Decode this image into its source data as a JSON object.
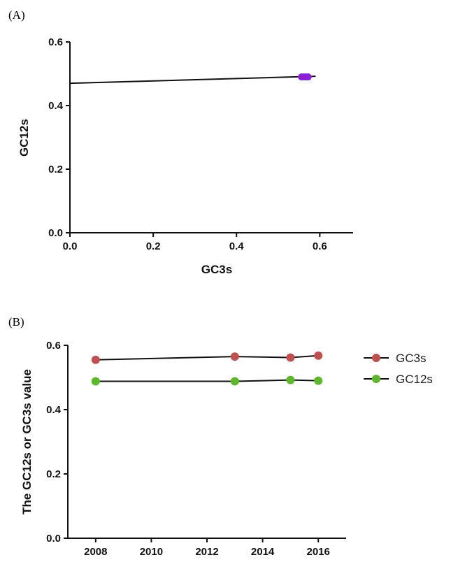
{
  "chart_data": [
    {
      "panel": "(A)",
      "type": "scatter",
      "xlabel": "GC3s",
      "ylabel": "GC12s",
      "xlim": [
        0,
        0.68
      ],
      "ylim": [
        0,
        0.6
      ],
      "xticks": [
        "0.0",
        "0.2",
        "0.4",
        "0.6"
      ],
      "yticks": [
        "0.0",
        "0.2",
        "0.4",
        "0.6"
      ],
      "points": [
        {
          "x": 0.556,
          "y": 0.49
        },
        {
          "x": 0.56,
          "y": 0.49
        },
        {
          "x": 0.564,
          "y": 0.49
        },
        {
          "x": 0.568,
          "y": 0.49
        },
        {
          "x": 0.572,
          "y": 0.49
        }
      ],
      "regression_line": {
        "x": [
          0,
          0.59
        ],
        "y": [
          0.47,
          0.492
        ]
      },
      "point_color": "#8a1fd6",
      "line_color": "#111111",
      "grid": false
    },
    {
      "panel": "(B)",
      "type": "line",
      "ylabel": "The GC12s or GC3s value",
      "xlabel": "",
      "xlim": [
        2007,
        2017
      ],
      "ylim": [
        0,
        0.6
      ],
      "xticks": [
        "2008",
        "2010",
        "2012",
        "2014",
        "2016"
      ],
      "yticks": [
        "0.0",
        "0.2",
        "0.4",
        "0.6"
      ],
      "x": [
        2008,
        2013,
        2015,
        2016
      ],
      "series": [
        {
          "name": "GC3s",
          "values": [
            0.555,
            0.565,
            0.562,
            0.568
          ],
          "color": "#c0504d"
        },
        {
          "name": "GC12s",
          "values": [
            0.488,
            0.488,
            0.492,
            0.49
          ],
          "color": "#5cb82a"
        }
      ],
      "legend_position": "right",
      "grid": false
    }
  ]
}
